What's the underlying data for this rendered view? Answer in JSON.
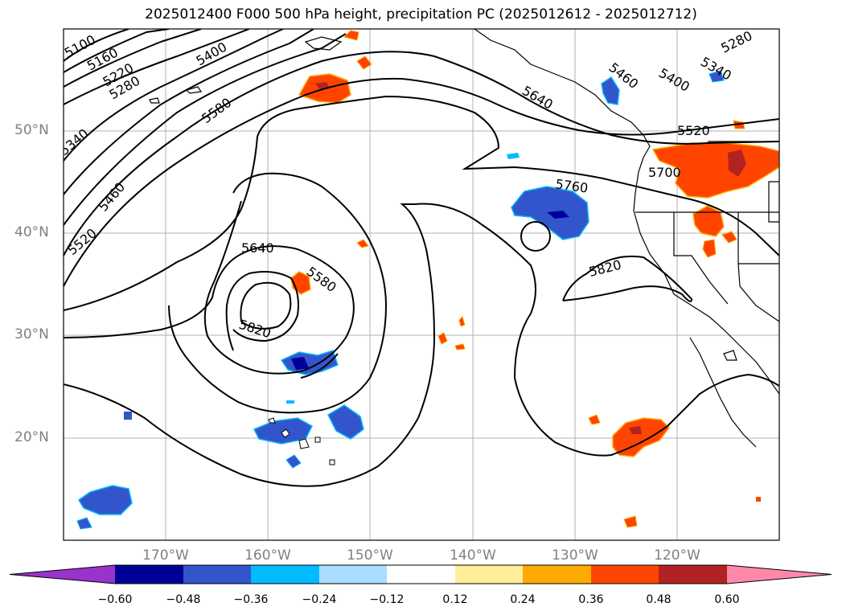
{
  "title": "2025012400 F000 500 hPa height, precipitation PC (2025012612 - 2025012712)",
  "map": {
    "type": "contour-map",
    "lat_range": [
      10,
      60
    ],
    "lon_range": [
      -180,
      -110
    ],
    "latitudes": [
      {
        "value": 50,
        "label": "50°N"
      },
      {
        "value": 40,
        "label": "40°N"
      },
      {
        "value": 30,
        "label": "30°N"
      },
      {
        "value": 20,
        "label": "20°N"
      }
    ],
    "longitudes": [
      {
        "value": -170,
        "label": "170°W"
      },
      {
        "value": -160,
        "label": "160°W"
      },
      {
        "value": -150,
        "label": "150°W"
      },
      {
        "value": -140,
        "label": "140°W"
      },
      {
        "value": -130,
        "label": "130°W"
      },
      {
        "value": -120,
        "label": "120°W"
      }
    ],
    "contour_labels": [
      "5100",
      "5160",
      "5220",
      "5280",
      "5340",
      "5400",
      "5460",
      "5520",
      "5580",
      "5640",
      "5700",
      "5760",
      "5820"
    ],
    "contour_color": "#000000",
    "grid_color": "#b0b0b0",
    "low_center_contour": "5520"
  },
  "colorbar": {
    "ticks": [
      "−0.60",
      "−0.48",
      "−0.36",
      "−0.24",
      "−0.12",
      "0.12",
      "0.24",
      "0.36",
      "0.48",
      "0.60"
    ],
    "colors": [
      "#9933cc",
      "#000099",
      "#3355cc",
      "#00bbff",
      "#aaddff",
      "#ffffff",
      "#ffee99",
      "#ffaa00",
      "#ff4400",
      "#b22222",
      "#ff88aa"
    ]
  }
}
